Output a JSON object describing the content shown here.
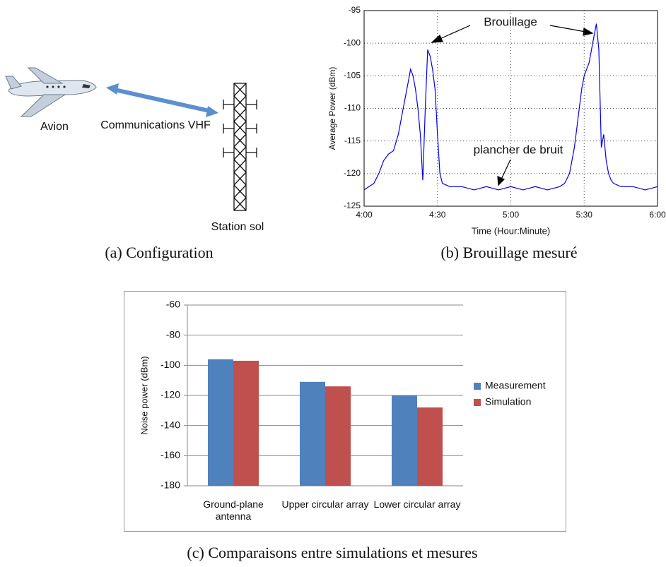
{
  "diagram": {
    "labels": [
      "Avion",
      "Communications VHF",
      "Station sol"
    ],
    "caption": "(a) Configuration"
  },
  "chart_data": [
    {
      "type": "line",
      "caption": "(b) Brouillage mesuré",
      "x_label": "Time (Hour:Minute)",
      "y_label": "Average Power (dBm)",
      "annotations": [
        "Brouillage",
        "plancher de bruit"
      ],
      "x": [
        240,
        242,
        244,
        246,
        248,
        250,
        252,
        254,
        256,
        257,
        258,
        259,
        260,
        261,
        262,
        263,
        264,
        265,
        266,
        267,
        268,
        269,
        270,
        271,
        272,
        275,
        280,
        285,
        290,
        295,
        300,
        305,
        310,
        315,
        320,
        322,
        324,
        325,
        326,
        327,
        328,
        329,
        330,
        331,
        332,
        333,
        334,
        335,
        336,
        337,
        338,
        339,
        340,
        341,
        342,
        345,
        350,
        355,
        360
      ],
      "series": [
        {
          "color": "#0000ee",
          "values": [
            -122.5,
            -122,
            -121.5,
            -120,
            -118,
            -117,
            -116.5,
            -114,
            -110,
            -108,
            -106,
            -104,
            -105,
            -107,
            -110,
            -114,
            -121,
            -110,
            -101,
            -102,
            -104,
            -107,
            -114,
            -120,
            -121.5,
            -122,
            -122,
            -122.5,
            -122,
            -122.5,
            -122,
            -122.5,
            -122,
            -122.5,
            -122,
            -121.5,
            -120,
            -118,
            -116,
            -113,
            -110,
            -107,
            -105,
            -104,
            -103,
            -101,
            -99,
            -97,
            -101,
            -116,
            -114,
            -118,
            -120,
            -121,
            -121.5,
            -122,
            -122,
            -122.5,
            -122
          ]
        }
      ],
      "xlim": [
        240,
        360
      ],
      "xticks": [
        {
          "value": 240,
          "label": "4:00"
        },
        {
          "value": 270,
          "label": "4:30"
        },
        {
          "value": 300,
          "label": "5:00"
        },
        {
          "value": 330,
          "label": "5:30"
        },
        {
          "value": 360,
          "label": "6:00"
        }
      ],
      "ylim": [
        -125,
        -95
      ],
      "yticks": [
        -125,
        -120,
        -115,
        -110,
        -105,
        -100,
        -95
      ],
      "grid": true
    },
    {
      "type": "bar",
      "caption": "(c) Comparaisons entre simulations et mesures",
      "y_label": "Noise power (dBm)",
      "categories": [
        "Ground-plane antenna",
        "Upper circular array",
        "Lower circular array"
      ],
      "series": [
        {
          "name": "Measurement",
          "color": "#4f81bd",
          "values": [
            -96,
            -111,
            -120
          ]
        },
        {
          "name": "Simulation",
          "color": "#c0504d",
          "values": [
            -97,
            -114,
            -128
          ]
        }
      ],
      "ylim": [
        -180,
        -60
      ],
      "yticks": [
        -180,
        -160,
        -140,
        -120,
        -100,
        -80,
        -60
      ],
      "grid": true,
      "legend": "right"
    }
  ]
}
